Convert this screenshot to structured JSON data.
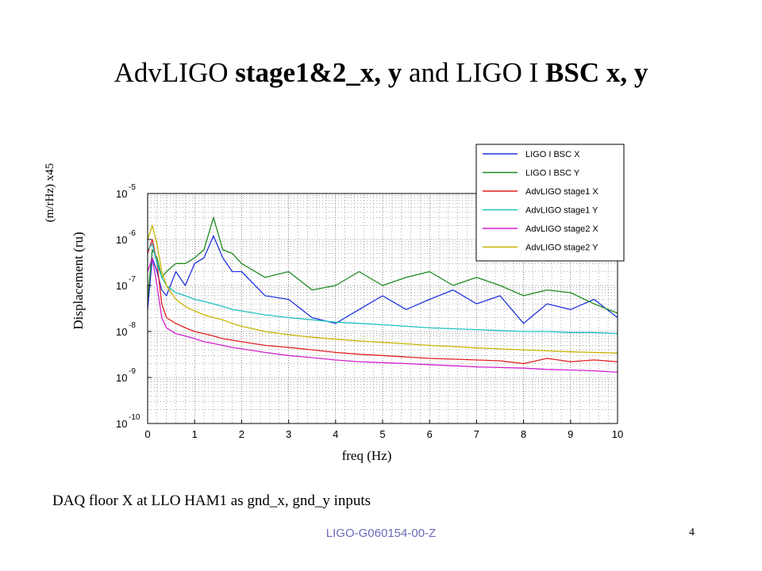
{
  "slide": {
    "title_parts": [
      {
        "text": "AdvLIGO ",
        "bold": false
      },
      {
        "text": "stage1&2_x, y",
        "bold": true
      },
      {
        "text": " and LIGO I ",
        "bold": false
      },
      {
        "text": "BSC x, y",
        "bold": true
      }
    ],
    "caption": "DAQ floor X at LLO HAM1 as gnd_x, gnd_y inputs",
    "footer_id": "LIGO-G060154-00-Z",
    "page_number": "4"
  },
  "chart_data": {
    "type": "line",
    "xlabel": "freq (Hz)",
    "ylabel": "Displacement (ru)",
    "ylabel_secondary": "(m/rHz) x45",
    "xlim": [
      0,
      10
    ],
    "ylim": [
      1e-10,
      1e-05
    ],
    "yscale": "log",
    "grid": true,
    "legend_position": "top-right",
    "x_ticks": [
      "0",
      "1",
      "2",
      "3",
      "4",
      "5",
      "6",
      "7",
      "8",
      "9",
      "10"
    ],
    "y_ticks": [
      {
        "base": "10",
        "exp": "-5"
      },
      {
        "base": "10",
        "exp": "-6"
      },
      {
        "base": "10",
        "exp": "-7"
      },
      {
        "base": "10",
        "exp": "-8"
      },
      {
        "base": "10",
        "exp": "-9"
      },
      {
        "base": "10",
        "exp": "-10"
      }
    ],
    "x": [
      0,
      0.1,
      0.2,
      0.3,
      0.4,
      0.6,
      0.8,
      1,
      1.2,
      1.4,
      1.6,
      1.8,
      2,
      2.5,
      3,
      3.5,
      4,
      4.5,
      5,
      5.5,
      6,
      6.5,
      7,
      7.5,
      8,
      8.5,
      9,
      9.5,
      10
    ],
    "series": [
      {
        "name": "LIGO I BSC X",
        "color": "#2233dd",
        "values": [
          3e-08,
          4e-07,
          2e-07,
          8e-08,
          6e-08,
          2e-07,
          1e-07,
          3e-07,
          4e-07,
          1.2e-06,
          4e-07,
          2e-07,
          2e-07,
          6e-08,
          5e-08,
          2e-08,
          1.5e-08,
          3e-08,
          6e-08,
          3e-08,
          5e-08,
          8e-08,
          4e-08,
          6e-08,
          1.5e-08,
          4e-08,
          3e-08,
          5e-08,
          2e-08
        ]
      },
      {
        "name": "LIGO I BSC Y",
        "color": "#1f8a1f",
        "values": [
          5e-08,
          6e-07,
          4e-07,
          1.5e-07,
          2e-07,
          3e-07,
          3e-07,
          4e-07,
          6e-07,
          3e-06,
          6e-07,
          5e-07,
          3e-07,
          1.5e-07,
          2e-07,
          8e-08,
          1e-07,
          2e-07,
          1e-07,
          1.5e-07,
          2e-07,
          1e-07,
          1.5e-07,
          1e-07,
          6e-08,
          8e-08,
          7e-08,
          4e-08,
          2.5e-08
        ]
      },
      {
        "name": "AdvLIGO stage1 X",
        "color": "#e02020",
        "values": [
          5e-07,
          1e-06,
          3e-07,
          4e-08,
          2e-08,
          1.5e-08,
          1.2e-08,
          1e-08,
          9e-09,
          8e-09,
          7e-09,
          6.5e-09,
          6e-09,
          5e-09,
          4.5e-09,
          4e-09,
          3.5e-09,
          3.2e-09,
          3e-09,
          2.8e-09,
          2.6e-09,
          2.5e-09,
          2.4e-09,
          2.3e-09,
          2e-09,
          2.6e-09,
          2.2e-09,
          2.4e-09,
          2.2e-09
        ]
      },
      {
        "name": "AdvLIGO stage1 Y",
        "color": "#20c0c0",
        "values": [
          6e-07,
          8e-07,
          3e-07,
          1.5e-07,
          1e-07,
          7e-08,
          6e-08,
          5e-08,
          4.5e-08,
          4e-08,
          3.5e-08,
          3e-08,
          2.8e-08,
          2.3e-08,
          2e-08,
          1.8e-08,
          1.6e-08,
          1.5e-08,
          1.4e-08,
          1.3e-08,
          1.2e-08,
          1.15e-08,
          1.1e-08,
          1.05e-08,
          1e-08,
          1e-08,
          9.5e-09,
          9.5e-09,
          9e-09
        ]
      },
      {
        "name": "AdvLIGO stage2 X",
        "color": "#d020d0",
        "values": [
          2e-07,
          4e-07,
          1e-07,
          2e-08,
          1.2e-08,
          9e-09,
          8e-09,
          7e-09,
          6e-09,
          5.5e-09,
          5e-09,
          4.5e-09,
          4.2e-09,
          3.5e-09,
          3e-09,
          2.7e-09,
          2.4e-09,
          2.2e-09,
          2.1e-09,
          2e-09,
          1.9e-09,
          1.8e-09,
          1.7e-09,
          1.65e-09,
          1.6e-09,
          1.5e-09,
          1.45e-09,
          1.4e-09,
          1.3e-09
        ]
      },
      {
        "name": "AdvLIGO stage2 Y",
        "color": "#c8b400",
        "values": [
          1e-06,
          2e-06,
          8e-07,
          2e-07,
          1e-07,
          5e-08,
          3.5e-08,
          2.8e-08,
          2.3e-08,
          2e-08,
          1.8e-08,
          1.5e-08,
          1.3e-08,
          1e-08,
          8.5e-09,
          7.5e-09,
          6.8e-09,
          6.2e-09,
          5.8e-09,
          5.4e-09,
          5e-09,
          4.7e-09,
          4.4e-09,
          4.2e-09,
          4e-09,
          3.8e-09,
          3.6e-09,
          3.5e-09,
          3.4e-09
        ]
      }
    ]
  }
}
